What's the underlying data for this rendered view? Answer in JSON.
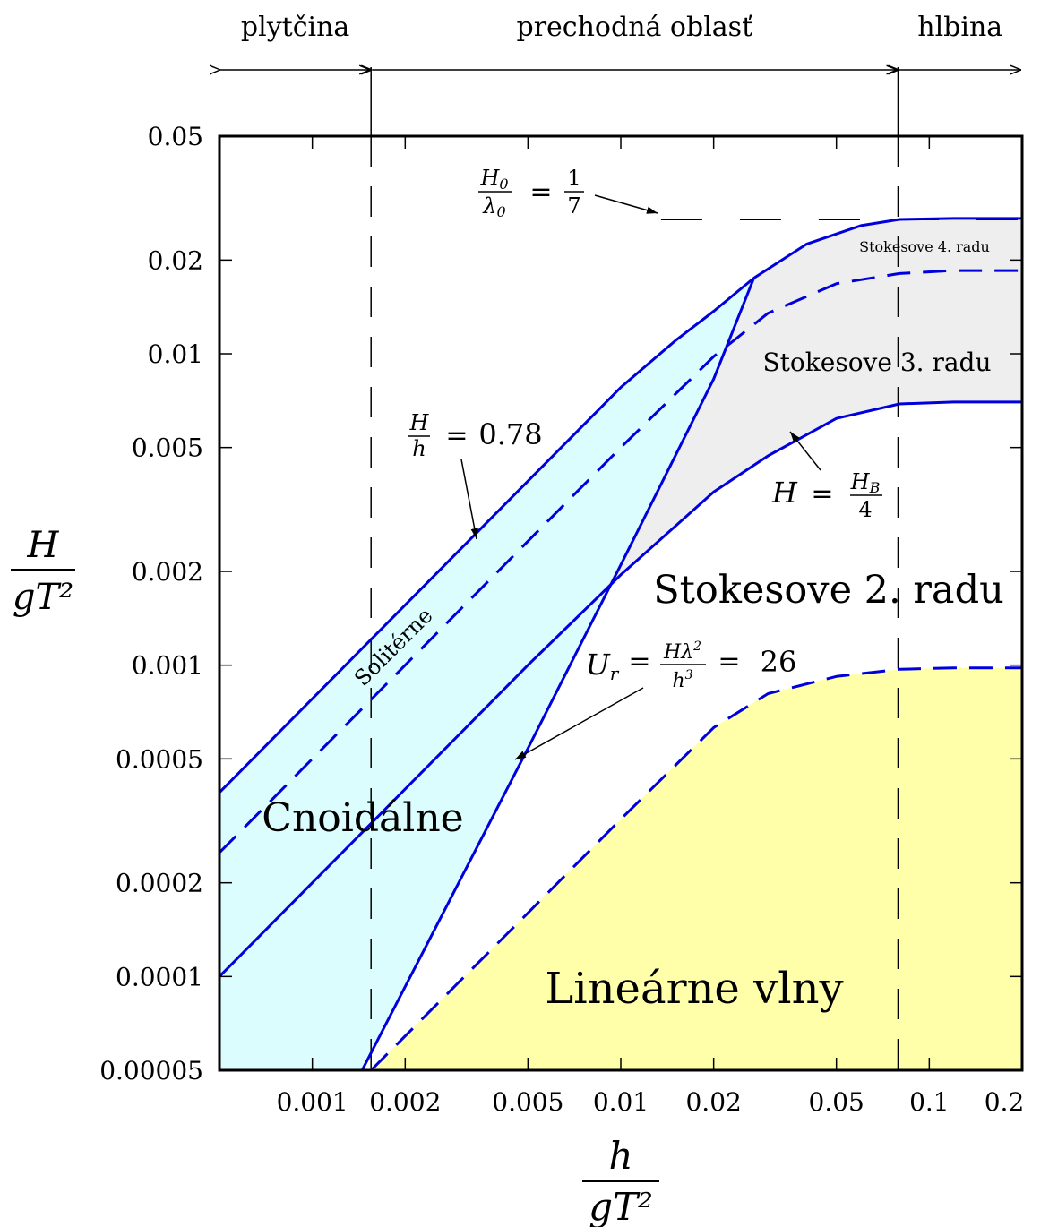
{
  "chart_data": {
    "type": "area",
    "x_scale": "log",
    "y_scale": "log",
    "xlim": [
      0.0005,
      0.2
    ],
    "ylim": [
      5e-05,
      0.05
    ],
    "xticks": [
      0.001,
      0.002,
      0.005,
      0.01,
      0.02,
      0.05,
      0.1,
      0.2
    ],
    "xtick_labels": [
      "0.001",
      "0.002",
      "0.005",
      "0.01",
      "0.02",
      "0.05",
      "0.1",
      "0.2"
    ],
    "yticks": [
      5e-05,
      0.0001,
      0.0002,
      0.0005,
      0.001,
      0.002,
      0.005,
      0.01,
      0.02,
      0.05
    ],
    "ytick_labels": [
      "0.00005",
      "0.0001",
      "0.0002",
      "0.0005",
      "0.001",
      "0.002",
      "0.005",
      "0.01",
      "0.02",
      "0.05"
    ],
    "xlabel": {
      "num": "h",
      "den": "gT²"
    },
    "ylabel": {
      "num": "H",
      "den": "gT²"
    },
    "zones": [
      {
        "label": "plytčina",
        "from": 0.0005,
        "to": 0.00155
      },
      {
        "label": "prechodná oblasť",
        "from": 0.00155,
        "to": 0.0792
      },
      {
        "label": "hlbina",
        "from": 0.0792,
        "to": 0.2
      }
    ],
    "zone_boundaries": [
      0.00155,
      0.0792
    ],
    "series": [
      {
        "name": "H/h = 0.78",
        "style": "solid",
        "x": [
          0.0005,
          0.005,
          0.01,
          0.015,
          0.02,
          0.027
        ],
        "y": [
          0.00039,
          0.0039,
          0.0078,
          0.011,
          0.0137,
          0.0175
        ]
      },
      {
        "name": "Solitérne",
        "style": "dashed",
        "x": [
          0.0005,
          0.005,
          0.01,
          0.02,
          0.03,
          0.05,
          0.08,
          0.12,
          0.2
        ],
        "y": [
          0.00025,
          0.0025,
          0.005,
          0.0098,
          0.0135,
          0.0168,
          0.0181,
          0.0185,
          0.0185
        ]
      },
      {
        "name": "Stokesove 4. radu",
        "style": "solid",
        "x": [
          0.027,
          0.04,
          0.06,
          0.08,
          0.12,
          0.2
        ],
        "y": [
          0.0175,
          0.0225,
          0.0258,
          0.027,
          0.0272,
          0.0272
        ]
      },
      {
        "name": "H = H_B/4",
        "style": "solid",
        "x": [
          0.0005,
          0.005,
          0.01,
          0.02,
          0.03,
          0.05,
          0.08,
          0.12,
          0.2
        ],
        "y": [
          0.0001,
          0.001,
          0.00195,
          0.0036,
          0.0047,
          0.0062,
          0.0069,
          0.007,
          0.007
        ]
      },
      {
        "name": "U_r = Hλ²/h³ = 26",
        "style": "solid",
        "x": [
          0.00145,
          0.005,
          0.01,
          0.02,
          0.027
        ],
        "y": [
          5e-05,
          0.00054,
          0.0021,
          0.0083,
          0.0175
        ]
      },
      {
        "name": "Lineárne vlny",
        "style": "dashed",
        "x": [
          0.00155,
          0.005,
          0.01,
          0.02,
          0.03,
          0.05,
          0.08,
          0.12,
          0.2
        ],
        "y": [
          5e-05,
          0.00016,
          0.00032,
          0.00063,
          0.00081,
          0.00092,
          0.00097,
          0.00098,
          0.00098
        ]
      },
      {
        "name": "H0/λ0 = 1/7",
        "style": "dashed",
        "x": [
          0.0135,
          0.2
        ],
        "y": [
          0.027,
          0.027
        ]
      }
    ],
    "fills": [
      {
        "name": "Cnoidálne",
        "color": "#dbfdfd"
      },
      {
        "name": "Stokesove 3. radu",
        "color": "#eeeeee"
      },
      {
        "name": "Lineárne vlny",
        "color": "#ffffaa"
      }
    ],
    "line_color": "#0000dd",
    "region_labels": {
      "cnoidal": "Cnoidálne",
      "linear": "Lineárne vlny",
      "stokes2": "Stokesove 2. radu",
      "stokes3": "Stokesove 3. radu",
      "stokes4": "Stokesove 4. radu",
      "solitary": "Solitérne"
    },
    "annotations": {
      "steepness": {
        "lhs_num": "H",
        "lhs_sub_num": "0",
        "lhs_den": "λ",
        "lhs_sub_den": "0",
        "rhs_num": "1",
        "rhs_den": "7"
      },
      "breaking": {
        "lhs_num": "H",
        "lhs_den": "h",
        "rhs": "0.78"
      },
      "stokes_limit": {
        "lhs": "H",
        "rhs_num": "H",
        "rhs_sub": "B",
        "rhs_den": "4"
      },
      "ursell": {
        "lhs": "U",
        "lhs_sub": "r",
        "frac_num": "Hλ",
        "frac_sup": "2",
        "frac_den": "h",
        "frac_den_sup": "3",
        "rhs": "26"
      }
    }
  }
}
